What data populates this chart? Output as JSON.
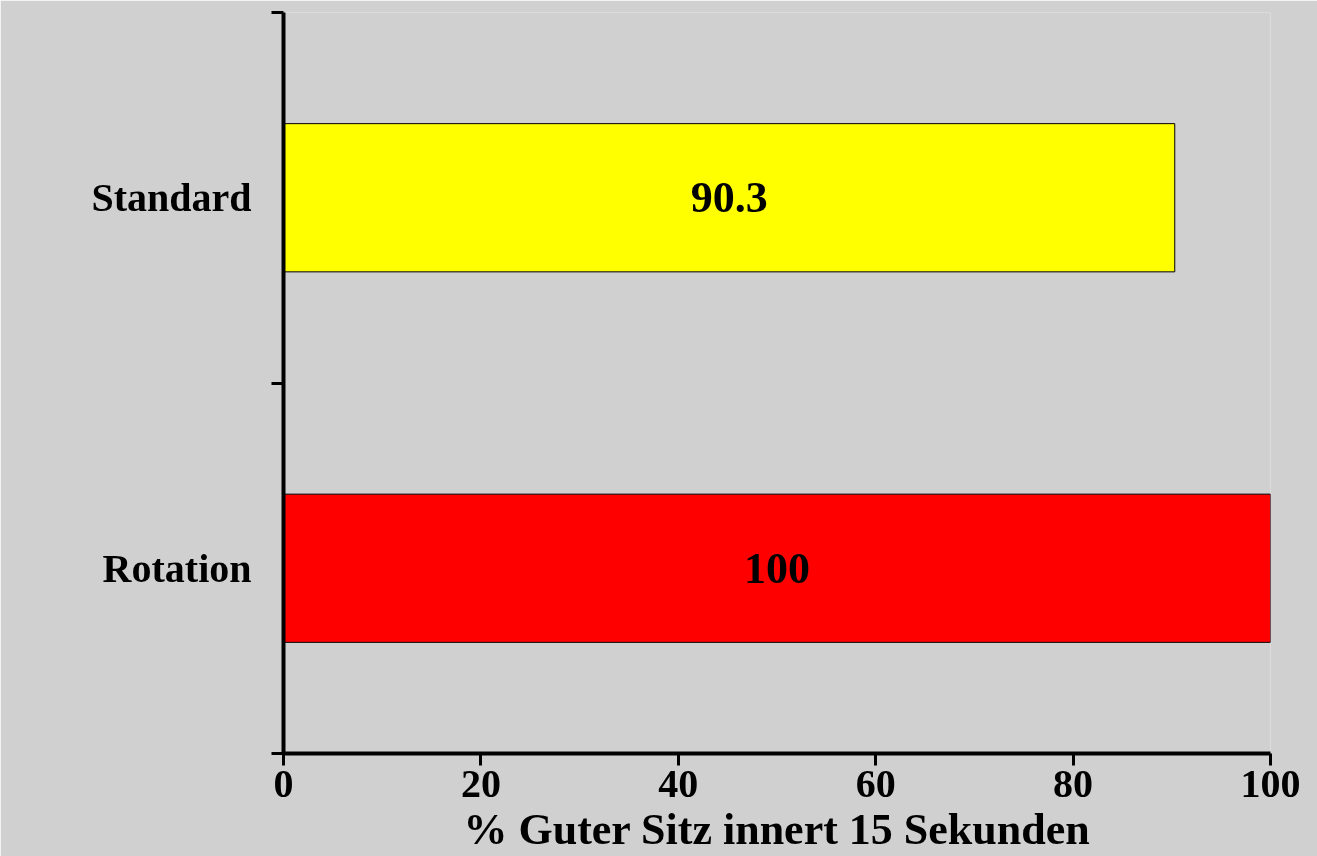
{
  "chart_data": {
    "type": "bar",
    "orientation": "horizontal",
    "xlabel": "% Guter Sitz innert 15 Sekunden",
    "categories": [
      "Standard",
      "Rotation"
    ],
    "values": [
      90.3,
      100
    ],
    "colors": [
      "#ffff00",
      "#ff0000"
    ],
    "xlim": [
      0,
      100
    ],
    "xticks": [
      0,
      20,
      40,
      60,
      80,
      100
    ],
    "data_labels": true,
    "grid": false
  }
}
